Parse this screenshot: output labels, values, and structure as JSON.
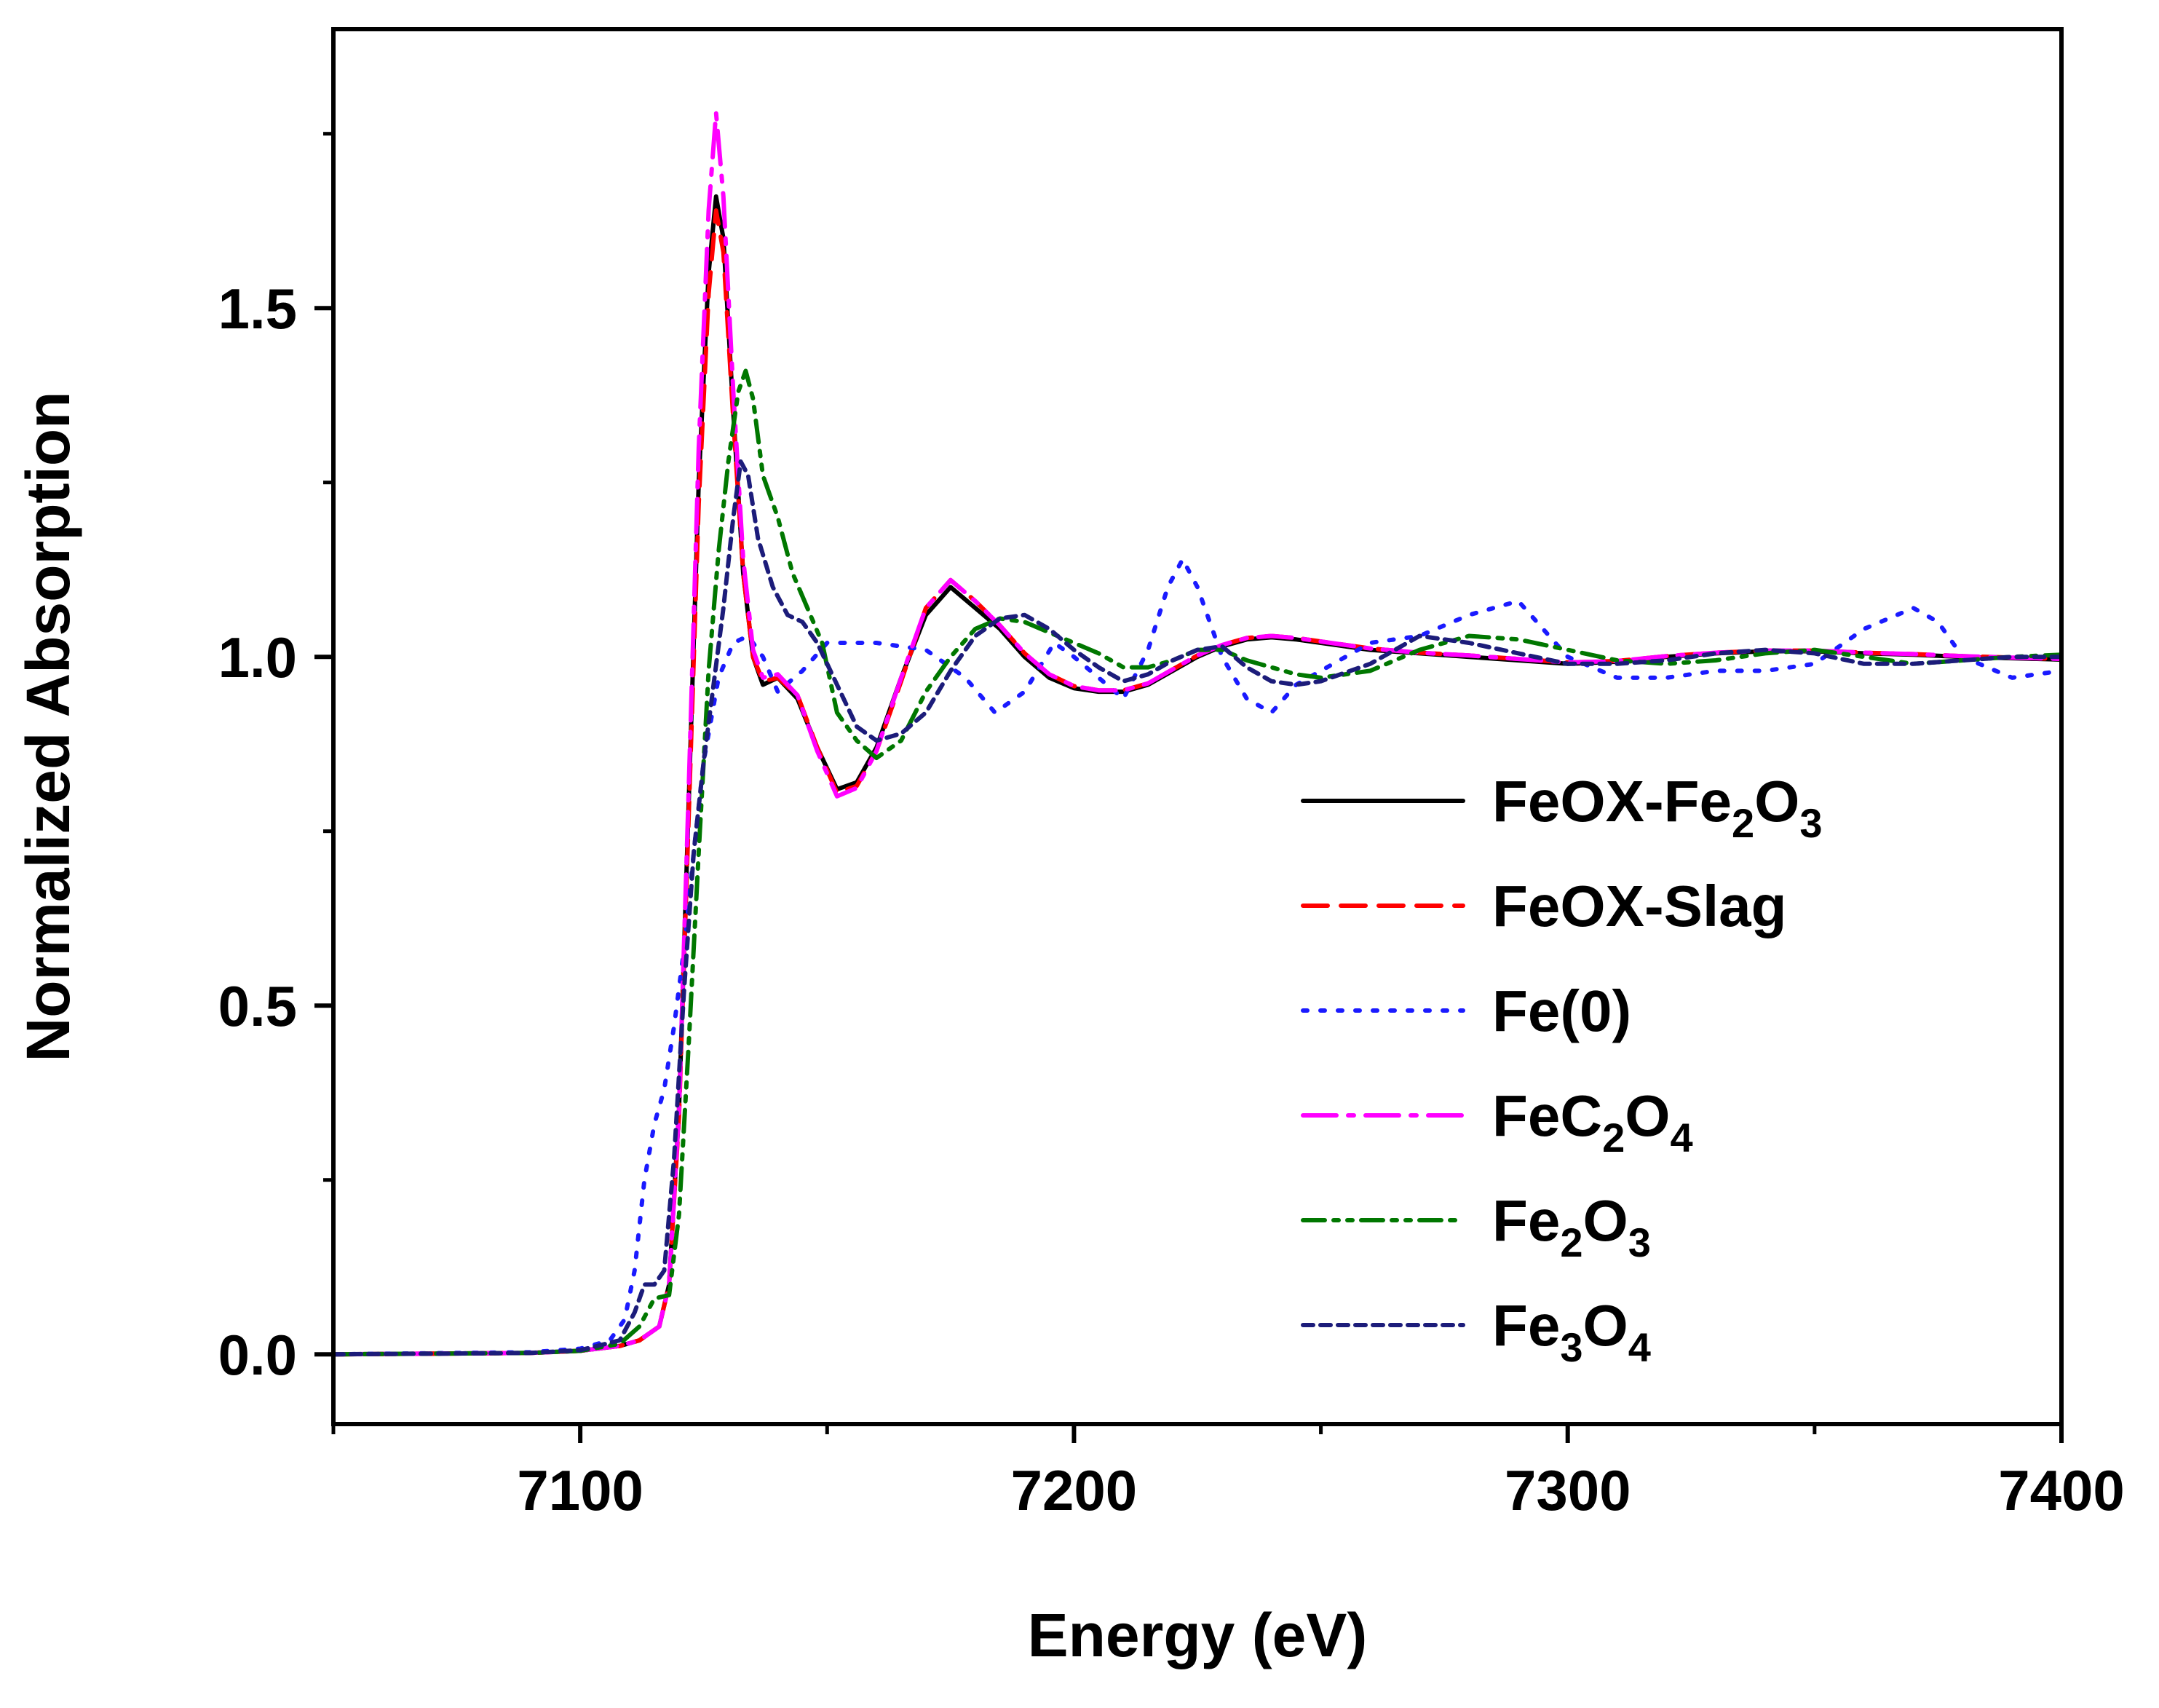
{
  "chart_data": {
    "type": "line",
    "title": "",
    "xlabel": "Energy (eV)",
    "ylabel": "Normalized Absorption",
    "xlim": [
      7050,
      7400
    ],
    "ylim": [
      -0.1,
      1.9
    ],
    "x_ticks": [
      7100,
      7200,
      7300,
      7400
    ],
    "x_tick_labels": [
      "7100",
      "7200",
      "7300",
      "7400"
    ],
    "y_ticks": [
      0.0,
      0.5,
      1.0,
      1.5
    ],
    "y_tick_labels": [
      "0.0",
      "0.5",
      "1.0",
      "1.5"
    ],
    "legend_position": "center-right",
    "series": [
      {
        "name": "FeOX-Fe2O3",
        "label_parts": [
          [
            "FeOX-Fe",
            ""
          ],
          [
            "2",
            "sub"
          ],
          [
            "O",
            ""
          ],
          [
            "3",
            "sub"
          ]
        ],
        "color": "#000000",
        "style": "solid",
        "x": [
          7050,
          7090,
          7100,
          7108,
          7112,
          7116,
          7118,
          7120,
          7122,
          7124,
          7126,
          7127.5,
          7129,
          7131,
          7133,
          7135,
          7137,
          7140,
          7144,
          7148,
          7152,
          7156,
          7160,
          7165,
          7170,
          7175,
          7180,
          7185,
          7190,
          7195,
          7200,
          7205,
          7210,
          7215,
          7220,
          7225,
          7230,
          7235,
          7240,
          7245,
          7250,
          7260,
          7270,
          7280,
          7290,
          7300,
          7310,
          7320,
          7330,
          7340,
          7350,
          7360,
          7370,
          7380,
          7390,
          7400
        ],
        "y": [
          0.0,
          0.002,
          0.005,
          0.012,
          0.02,
          0.04,
          0.1,
          0.35,
          0.8,
          1.25,
          1.55,
          1.66,
          1.6,
          1.35,
          1.12,
          1.0,
          0.96,
          0.97,
          0.94,
          0.87,
          0.81,
          0.82,
          0.87,
          0.97,
          1.06,
          1.1,
          1.07,
          1.04,
          1.0,
          0.97,
          0.955,
          0.95,
          0.95,
          0.96,
          0.98,
          1.0,
          1.015,
          1.025,
          1.028,
          1.025,
          1.02,
          1.01,
          1.005,
          1.0,
          0.995,
          0.99,
          0.993,
          1.0,
          1.005,
          1.008,
          1.008,
          1.005,
          1.003,
          1.0,
          0.998,
          0.996
        ]
      },
      {
        "name": "FeOX-Slag",
        "label_parts": [
          [
            "FeOX-Slag",
            ""
          ]
        ],
        "color": "#ff0000",
        "style": "dash",
        "x": [
          7050,
          7090,
          7100,
          7108,
          7112,
          7116,
          7118,
          7120,
          7122,
          7124,
          7126,
          7127.5,
          7129,
          7131,
          7133,
          7135,
          7137,
          7140,
          7144,
          7148,
          7152,
          7156,
          7160,
          7165,
          7170,
          7175,
          7180,
          7185,
          7190,
          7195,
          7200,
          7205,
          7210,
          7215,
          7220,
          7225,
          7230,
          7235,
          7240,
          7245,
          7250,
          7260,
          7270,
          7280,
          7290,
          7300,
          7310,
          7320,
          7330,
          7340,
          7350,
          7360,
          7370,
          7380,
          7390,
          7400
        ],
        "y": [
          0.0,
          0.002,
          0.005,
          0.012,
          0.02,
          0.04,
          0.1,
          0.34,
          0.78,
          1.22,
          1.52,
          1.64,
          1.58,
          1.34,
          1.12,
          1.0,
          0.965,
          0.97,
          0.945,
          0.87,
          0.805,
          0.815,
          0.865,
          0.965,
          1.07,
          1.11,
          1.08,
          1.045,
          1.005,
          0.975,
          0.958,
          0.952,
          0.952,
          0.962,
          0.982,
          1.002,
          1.017,
          1.027,
          1.03,
          1.027,
          1.022,
          1.012,
          1.006,
          1.002,
          0.997,
          0.992,
          0.994,
          1.001,
          1.006,
          1.009,
          1.009,
          1.006,
          1.004,
          1.001,
          0.999,
          0.997
        ]
      },
      {
        "name": "Fe(0)",
        "label_parts": [
          [
            "Fe(0)",
            ""
          ]
        ],
        "color": "#1a1aff",
        "style": "dot",
        "x": [
          7050,
          7090,
          7100,
          7106,
          7109,
          7111,
          7113,
          7115,
          7117,
          7119,
          7121,
          7123,
          7125,
          7128,
          7131,
          7134,
          7137,
          7140,
          7145,
          7150,
          7160,
          7170,
          7178,
          7184,
          7190,
          7196,
          7200,
          7205,
          7210,
          7215,
          7219,
          7222,
          7225,
          7230,
          7235,
          7240,
          7245,
          7250,
          7260,
          7270,
          7280,
          7290,
          7295,
          7300,
          7310,
          7320,
          7330,
          7340,
          7350,
          7360,
          7370,
          7375,
          7380,
          7390,
          7400
        ],
        "y": [
          0.0,
          0.003,
          0.008,
          0.02,
          0.05,
          0.12,
          0.25,
          0.33,
          0.38,
          0.47,
          0.58,
          0.72,
          0.85,
          0.97,
          1.02,
          1.03,
          1.0,
          0.95,
          0.98,
          1.02,
          1.02,
          1.01,
          0.97,
          0.92,
          0.95,
          1.02,
          1.0,
          0.97,
          0.94,
          1.01,
          1.1,
          1.14,
          1.1,
          1.0,
          0.94,
          0.92,
          0.96,
          0.98,
          1.02,
          1.03,
          1.06,
          1.08,
          1.04,
          1.0,
          0.97,
          0.97,
          0.98,
          0.98,
          0.99,
          1.04,
          1.07,
          1.05,
          1.0,
          0.97,
          0.98
        ]
      },
      {
        "name": "FeC2O4",
        "label_parts": [
          [
            "FeC",
            ""
          ],
          [
            "2",
            "sub"
          ],
          [
            "O",
            ""
          ],
          [
            "4",
            "sub"
          ]
        ],
        "color": "#ff00ff",
        "style": "dashdot",
        "x": [
          7050,
          7090,
          7100,
          7108,
          7112,
          7116,
          7118,
          7120,
          7122,
          7124,
          7126,
          7127.5,
          7129,
          7131,
          7133,
          7135,
          7137,
          7140,
          7144,
          7148,
          7152,
          7156,
          7160,
          7165,
          7170,
          7175,
          7180,
          7185,
          7190,
          7195,
          7200,
          7205,
          7210,
          7215,
          7220,
          7225,
          7230,
          7235,
          7240,
          7245,
          7250,
          7260,
          7270,
          7280,
          7290,
          7300,
          7310,
          7320,
          7330,
          7340,
          7350,
          7360,
          7370,
          7380,
          7390,
          7400
        ],
        "y": [
          0.0,
          0.002,
          0.005,
          0.012,
          0.02,
          0.04,
          0.1,
          0.35,
          0.82,
          1.3,
          1.64,
          1.78,
          1.66,
          1.38,
          1.14,
          1.01,
          0.97,
          0.975,
          0.945,
          0.865,
          0.8,
          0.812,
          0.865,
          0.97,
          1.07,
          1.11,
          1.08,
          1.045,
          1.005,
          0.975,
          0.958,
          0.952,
          0.952,
          0.962,
          0.982,
          1.002,
          1.017,
          1.027,
          1.03,
          1.027,
          1.022,
          1.012,
          1.006,
          1.002,
          0.997,
          0.992,
          0.994,
          1.001,
          1.006,
          1.009,
          1.009,
          1.006,
          1.004,
          1.001,
          0.999,
          0.997
        ]
      },
      {
        "name": "Fe2O3",
        "label_parts": [
          [
            "Fe",
            ""
          ],
          [
            "2",
            "sub"
          ],
          [
            "O",
            ""
          ],
          [
            "3",
            "sub"
          ]
        ],
        "color": "#007700",
        "style": "dashdotdot",
        "x": [
          7050,
          7090,
          7100,
          7108,
          7112,
          7115,
          7118,
          7120,
          7122,
          7124,
          7126,
          7128,
          7130,
          7132,
          7133.5,
          7135,
          7137,
          7140,
          7143,
          7146,
          7149,
          7152,
          7156,
          7160,
          7165,
          7170,
          7175,
          7180,
          7185,
          7190,
          7195,
          7200,
          7205,
          7210,
          7215,
          7220,
          7225,
          7230,
          7235,
          7240,
          7245,
          7250,
          7260,
          7270,
          7280,
          7290,
          7300,
          7310,
          7320,
          7330,
          7340,
          7350,
          7360,
          7370,
          7380,
          7390,
          7400
        ],
        "y": [
          0.0,
          0.002,
          0.005,
          0.015,
          0.04,
          0.08,
          0.085,
          0.2,
          0.45,
          0.72,
          0.98,
          1.15,
          1.28,
          1.38,
          1.41,
          1.37,
          1.26,
          1.2,
          1.12,
          1.07,
          1.02,
          0.92,
          0.88,
          0.855,
          0.88,
          0.95,
          1.0,
          1.04,
          1.055,
          1.05,
          1.035,
          1.02,
          1.005,
          0.985,
          0.985,
          0.995,
          1.01,
          1.01,
          0.995,
          0.985,
          0.975,
          0.97,
          0.98,
          1.01,
          1.03,
          1.025,
          1.01,
          0.995,
          0.99,
          0.995,
          1.005,
          1.01,
          1.0,
          0.99,
          0.995,
          1.0,
          1.003
        ]
      },
      {
        "name": "Fe3O4",
        "label_parts": [
          [
            "Fe",
            ""
          ],
          [
            "3",
            "sub"
          ],
          [
            "O",
            ""
          ],
          [
            "4",
            "sub"
          ]
        ],
        "color": "#1c1c7a",
        "style": "shortdash",
        "x": [
          7050,
          7090,
          7100,
          7108,
          7111,
          7113,
          7115,
          7117,
          7119,
          7121,
          7123,
          7125,
          7127,
          7129,
          7131,
          7132.5,
          7134,
          7136,
          7139,
          7142,
          7145,
          7148,
          7152,
          7156,
          7160,
          7165,
          7170,
          7175,
          7180,
          7185,
          7190,
          7195,
          7200,
          7205,
          7210,
          7215,
          7220,
          7225,
          7230,
          7235,
          7240,
          7245,
          7250,
          7260,
          7270,
          7280,
          7290,
          7300,
          7310,
          7320,
          7330,
          7340,
          7350,
          7360,
          7370,
          7380,
          7390,
          7400
        ],
        "y": [
          0.0,
          0.002,
          0.006,
          0.02,
          0.06,
          0.1,
          0.1,
          0.12,
          0.28,
          0.52,
          0.72,
          0.85,
          0.96,
          1.07,
          1.2,
          1.28,
          1.26,
          1.17,
          1.1,
          1.06,
          1.05,
          1.02,
          0.96,
          0.9,
          0.88,
          0.89,
          0.92,
          0.98,
          1.03,
          1.055,
          1.06,
          1.04,
          1.01,
          0.985,
          0.965,
          0.975,
          0.995,
          1.01,
          1.015,
          0.985,
          0.965,
          0.96,
          0.965,
          0.99,
          1.03,
          1.02,
          1.005,
          0.99,
          0.99,
          0.995,
          1.005,
          1.01,
          1.005,
          0.99,
          0.99,
          0.995,
          1.0,
          1.0
        ]
      }
    ]
  }
}
